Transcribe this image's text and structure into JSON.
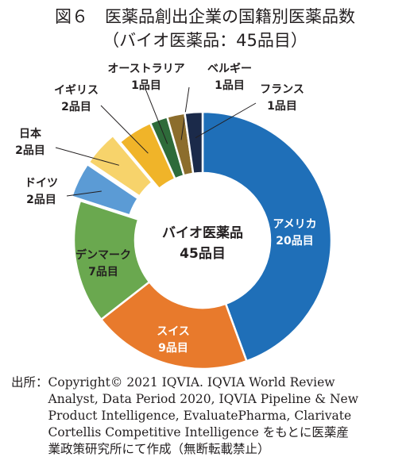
{
  "title": "図６　医薬品創出企業の国籍別医薬品数",
  "subtitle": "（バイオ医薬品：45品目）",
  "chart_data": {
    "type": "pie",
    "variant": "donut",
    "center_label": [
      "バイオ医薬品",
      "45品目"
    ],
    "total": 45,
    "slices": [
      {
        "label": "アメリカ",
        "value": 20,
        "value_label": "20品目",
        "color": "#1f6fb8",
        "text_color": "#ffffff"
      },
      {
        "label": "スイス",
        "value": 9,
        "value_label": "9品目",
        "color": "#e87a2c",
        "text_color": "#ffffff"
      },
      {
        "label": "デンマーク",
        "value": 7,
        "value_label": "7品目",
        "color": "#6aa84f",
        "text_color": "#231f20"
      },
      {
        "label": "ドイツ",
        "value": 2,
        "value_label": "2品目",
        "color": "#5b9bd5",
        "text_color": "#231f20",
        "exploded": true
      },
      {
        "label": "日本",
        "value": 2,
        "value_label": "2品目",
        "color": "#f7d36b",
        "text_color": "#231f20",
        "exploded": true
      },
      {
        "label": "イギリス",
        "value": 2,
        "value_label": "2品目",
        "color": "#f0b429",
        "text_color": "#231f20"
      },
      {
        "label": "オーストラリア",
        "value": 1,
        "value_label": "1品目",
        "color": "#2e6b3a",
        "text_color": "#231f20"
      },
      {
        "label": "ベルギー",
        "value": 1,
        "value_label": "1品目",
        "color": "#8c6d2c",
        "text_color": "#231f20"
      },
      {
        "label": "フランス",
        "value": 1,
        "value_label": "1品目",
        "color": "#1b2a4a",
        "text_color": "#231f20"
      }
    ]
  },
  "source": {
    "label": "出所：",
    "lines": [
      "Copyright© 2021 IQVIA. IQVIA World Review",
      "Analyst, Data Period 2020, IQVIA Pipeline & New",
      "Product Intelligence, EvaluatePharma, Clarivate",
      "Cortellis Competitive Intelligence をもとに医薬産",
      "業政策研究所にて作成（無断転載禁止）"
    ]
  }
}
